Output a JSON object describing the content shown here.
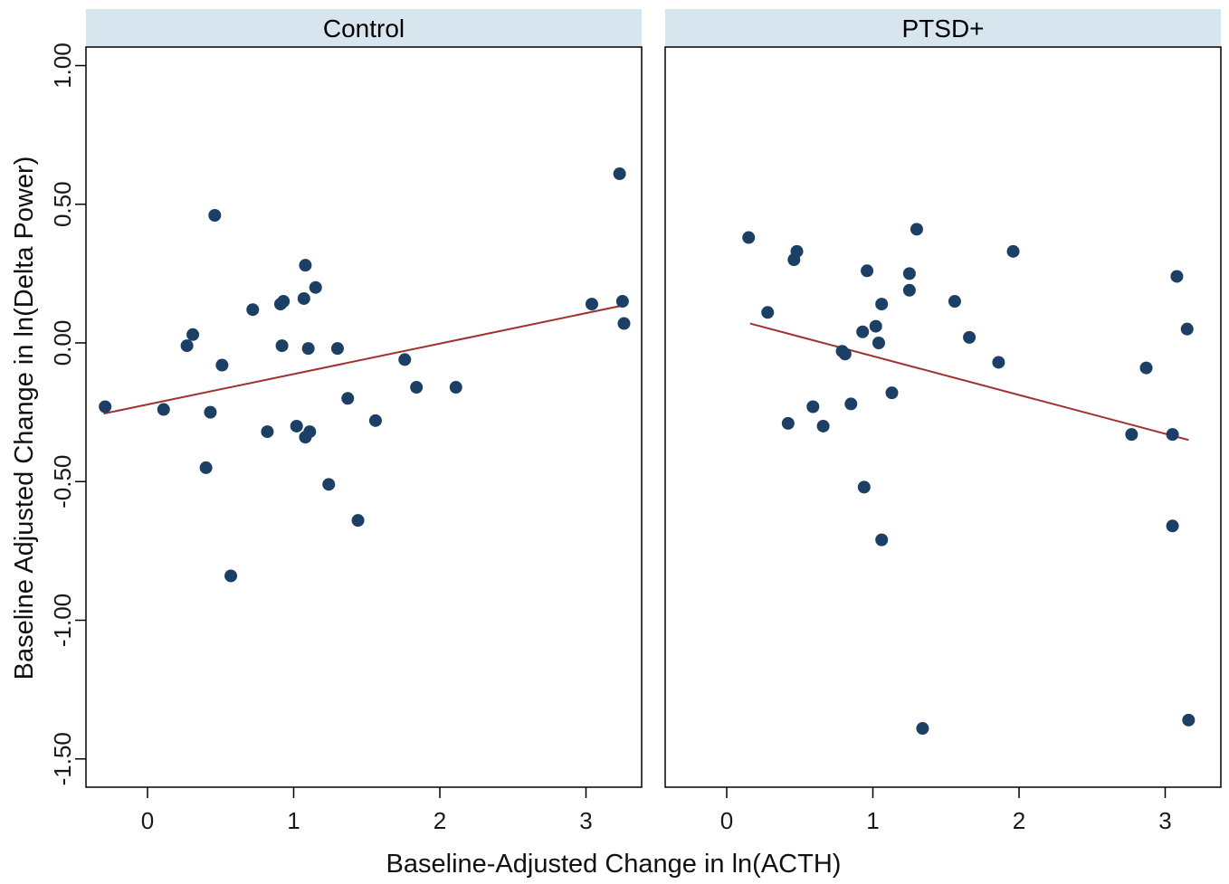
{
  "colors": {
    "strip": "#d7e6ee",
    "point": "#1c3f66",
    "fit_line": "#a0312f",
    "axis": "#000000"
  },
  "chart_data": {
    "type": "scatter",
    "xlabel": "Baseline-Adjusted Change in ln(ACTH)",
    "ylabel": "Baseline Adjusted Change in ln(Delta Power)",
    "xlim": [
      -0.4,
      3.35
    ],
    "ylim": [
      -1.6,
      1.1
    ],
    "x_ticks": [
      0,
      1,
      2,
      3
    ],
    "y_ticks": [
      1.0,
      0.5,
      0.0,
      -0.5,
      -1.0,
      -1.5
    ],
    "x_tick_labels": [
      "0",
      "1",
      "2",
      "3"
    ],
    "y_tick_labels": [
      "1.00",
      "0.50",
      "0.00",
      "-0.50",
      "-1.00",
      "-1.50"
    ],
    "grid": false,
    "panels": [
      {
        "title": "Control",
        "points": [
          [
            -0.29,
            -0.23
          ],
          [
            0.11,
            -0.24
          ],
          [
            0.27,
            -0.01
          ],
          [
            0.31,
            0.03
          ],
          [
            0.4,
            -0.45
          ],
          [
            0.43,
            -0.25
          ],
          [
            0.46,
            0.46
          ],
          [
            0.51,
            -0.08
          ],
          [
            0.57,
            -0.84
          ],
          [
            0.72,
            0.12
          ],
          [
            0.82,
            -0.32
          ],
          [
            0.91,
            0.14
          ],
          [
            0.92,
            -0.01
          ],
          [
            0.93,
            0.15
          ],
          [
            1.02,
            -0.3
          ],
          [
            1.07,
            0.16
          ],
          [
            1.08,
            0.28
          ],
          [
            1.08,
            -0.34
          ],
          [
            1.1,
            -0.02
          ],
          [
            1.11,
            -0.32
          ],
          [
            1.15,
            0.2
          ],
          [
            1.24,
            -0.51
          ],
          [
            1.3,
            -0.02
          ],
          [
            1.37,
            -0.2
          ],
          [
            1.44,
            -0.64
          ],
          [
            1.56,
            -0.28
          ],
          [
            1.76,
            -0.06
          ],
          [
            1.84,
            -0.16
          ],
          [
            2.11,
            -0.16
          ],
          [
            3.04,
            0.14
          ],
          [
            3.23,
            0.61
          ],
          [
            3.25,
            0.15
          ],
          [
            3.26,
            0.07
          ]
        ],
        "fit_line": [
          [
            -0.3,
            -0.255
          ],
          [
            3.27,
            0.137
          ]
        ]
      },
      {
        "title": "PTSD+",
        "points": [
          [
            0.15,
            0.38
          ],
          [
            0.28,
            0.11
          ],
          [
            0.42,
            -0.29
          ],
          [
            0.46,
            0.3
          ],
          [
            0.48,
            0.33
          ],
          [
            0.59,
            -0.23
          ],
          [
            0.66,
            -0.3
          ],
          [
            0.79,
            -0.03
          ],
          [
            0.81,
            -0.04
          ],
          [
            0.85,
            -0.22
          ],
          [
            0.93,
            0.04
          ],
          [
            0.94,
            -0.52
          ],
          [
            0.96,
            0.26
          ],
          [
            1.02,
            0.06
          ],
          [
            1.04,
            0.0
          ],
          [
            1.06,
            0.14
          ],
          [
            1.06,
            -0.71
          ],
          [
            1.13,
            -0.18
          ],
          [
            1.25,
            0.25
          ],
          [
            1.25,
            0.19
          ],
          [
            1.3,
            0.41
          ],
          [
            1.34,
            -1.39
          ],
          [
            1.56,
            0.15
          ],
          [
            1.66,
            0.02
          ],
          [
            1.86,
            -0.07
          ],
          [
            1.96,
            0.33
          ],
          [
            2.77,
            -0.33
          ],
          [
            2.87,
            -0.09
          ],
          [
            3.05,
            -0.33
          ],
          [
            3.05,
            -0.66
          ],
          [
            3.08,
            0.24
          ],
          [
            3.15,
            0.05
          ],
          [
            3.16,
            -1.36
          ]
        ],
        "fit_line": [
          [
            0.16,
            0.07
          ],
          [
            3.16,
            -0.35
          ]
        ]
      }
    ]
  }
}
